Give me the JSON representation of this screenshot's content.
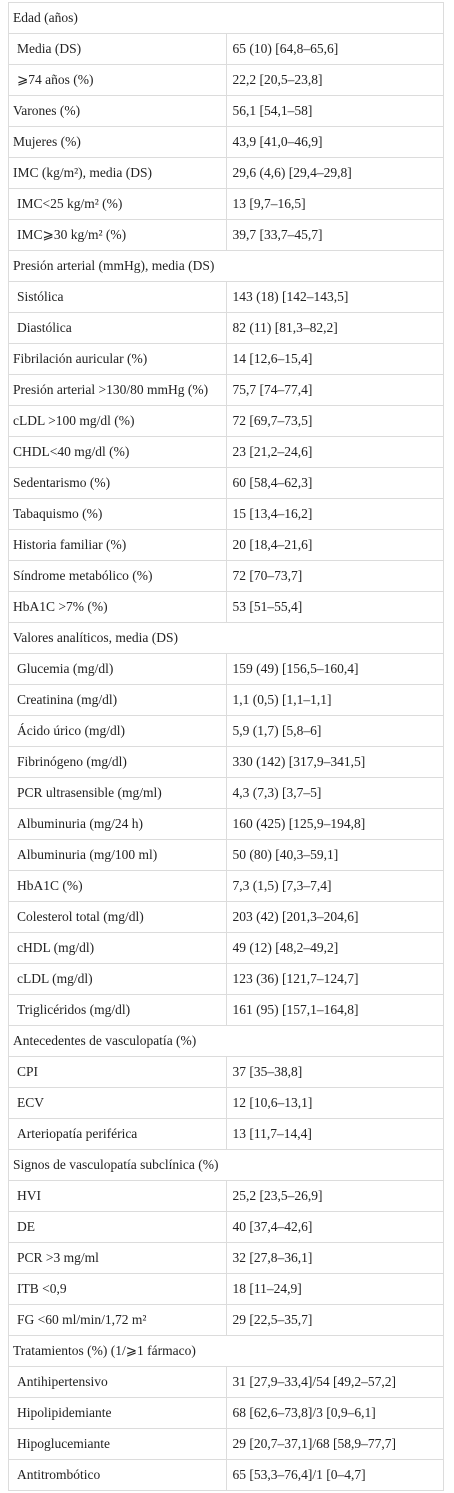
{
  "table": {
    "rows": [
      {
        "label": "Edad (años)",
        "items": [
          {
            "label": "Media (DS)",
            "value": "65 (10) [64,8–65,6]"
          },
          {
            "label": "⩾74 años (%)",
            "value": "22,2 [20,5–23,8]"
          }
        ]
      },
      {
        "label": "Varones (%)",
        "value": "56,1 [54,1–58]"
      },
      {
        "label": "Mujeres (%)",
        "value": "43,9 [41,0–46,9]"
      },
      {
        "label": "IMC (kg/m²), media (DS)",
        "value": "29,6 (4,6) [29,4–29,8]",
        "items": [
          {
            "label": "IMC<25 kg/m² (%)",
            "value": "13 [9,7–16,5]"
          },
          {
            "label": "IMC⩾30 kg/m² (%)",
            "value": "39,7 [33,7–45,7]"
          }
        ]
      },
      {
        "label": "Presión arterial (mmHg), media (DS)",
        "items": [
          {
            "label": "Sistólica",
            "value": "143 (18) [142–143,5]"
          },
          {
            "label": "Diastólica",
            "value": "82 (11) [81,3–82,2]"
          }
        ]
      },
      {
        "label": "Fibrilación auricular (%)",
        "value": "14 [12,6–15,4]"
      },
      {
        "label": "Presión arterial >130/80 mmHg (%)",
        "value": "75,7 [74–77,4]"
      },
      {
        "label": "cLDL >100 mg/dl (%)",
        "value": "72 [69,7–73,5]"
      },
      {
        "label": "CHDL<40 mg/dl (%)",
        "value": "23 [21,2–24,6]"
      },
      {
        "label": "Sedentarismo (%)",
        "value": "60 [58,4–62,3]"
      },
      {
        "label": "Tabaquismo (%)",
        "value": "15 [13,4–16,2]"
      },
      {
        "label": "Historia familiar (%)",
        "value": "20 [18,4–21,6]"
      },
      {
        "label": "Síndrome metabólico (%)",
        "value": "72 [70–73,7]"
      },
      {
        "label": "HbA1C >7% (%)",
        "value": "53 [51–55,4]"
      },
      {
        "label": "Valores analíticos, media (DS)",
        "items": [
          {
            "label": "Glucemia (mg/dl)",
            "value": "159 (49) [156,5–160,4]"
          },
          {
            "label": "Creatinina (mg/dl)",
            "value": "1,1 (0,5) [1,1–1,1]"
          },
          {
            "label": "Ácido úrico (mg/dl)",
            "value": "5,9 (1,7) [5,8–6]"
          },
          {
            "label": "Fibrinógeno (mg/dl)",
            "value": "330 (142) [317,9–341,5]"
          },
          {
            "label": "PCR ultrasensible (mg/ml)",
            "value": "4,3 (7,3) [3,7–5]"
          },
          {
            "label": "Albuminuria (mg/24 h)",
            "value": "160 (425) [125,9–194,8]"
          },
          {
            "label": "Albuminuria (mg/100 ml)",
            "value": "50 (80) [40,3–59,1]"
          },
          {
            "label": "HbA1C (%)",
            "value": "7,3 (1,5) [7,3–7,4]"
          },
          {
            "label": "Colesterol total (mg/dl)",
            "value": "203 (42) [201,3–204,6]"
          },
          {
            "label": "cHDL (mg/dl)",
            "value": "49 (12) [48,2–49,2]"
          },
          {
            "label": "cLDL (mg/dl)",
            "value": "123 (36) [121,7–124,7]"
          },
          {
            "label": "Triglicéridos (mg/dl)",
            "value": "161 (95) [157,1–164,8]"
          }
        ]
      },
      {
        "label": "Antecedentes de vasculopatía (%)",
        "items": [
          {
            "label": "CPI",
            "value": "37 [35–38,8]"
          },
          {
            "label": "ECV",
            "value": "12 [10,6–13,1]"
          },
          {
            "label": "Arteriopatía periférica",
            "value": "13 [11,7–14,4]"
          }
        ]
      },
      {
        "label": "Signos de vasculopatía subclínica (%)",
        "items": [
          {
            "label": "HVI",
            "value": "25,2 [23,5–26,9]"
          },
          {
            "label": "DE",
            "value": "40 [37,4–42,6]"
          },
          {
            "label": "PCR >3 mg/ml",
            "value": "32 [27,8–36,1]"
          },
          {
            "label": "ITB <0,9",
            "value": "18 [11–24,9]"
          },
          {
            "label": "FG <60 ml/min/1,72 m²",
            "value": "29 [22,5–35,7]"
          }
        ]
      },
      {
        "label": "Tratamientos (%) (1/⩾1 fármaco)",
        "items": [
          {
            "label": "Antihipertensivo",
            "value": "31 [27,9–33,4]/54 [49,2–57,2]"
          },
          {
            "label": "Hipolipidemiante",
            "value": "68 [62,6–73,8]/3 [0,9–6,1]"
          },
          {
            "label": "Hipoglucemiante",
            "value": "29 [20,7–37,1]/68 [58,9–77,7]"
          },
          {
            "label": "Antitrombótico",
            "value": "65 [53,3–76,4]/1 [0–4,7]"
          }
        ]
      }
    ]
  }
}
